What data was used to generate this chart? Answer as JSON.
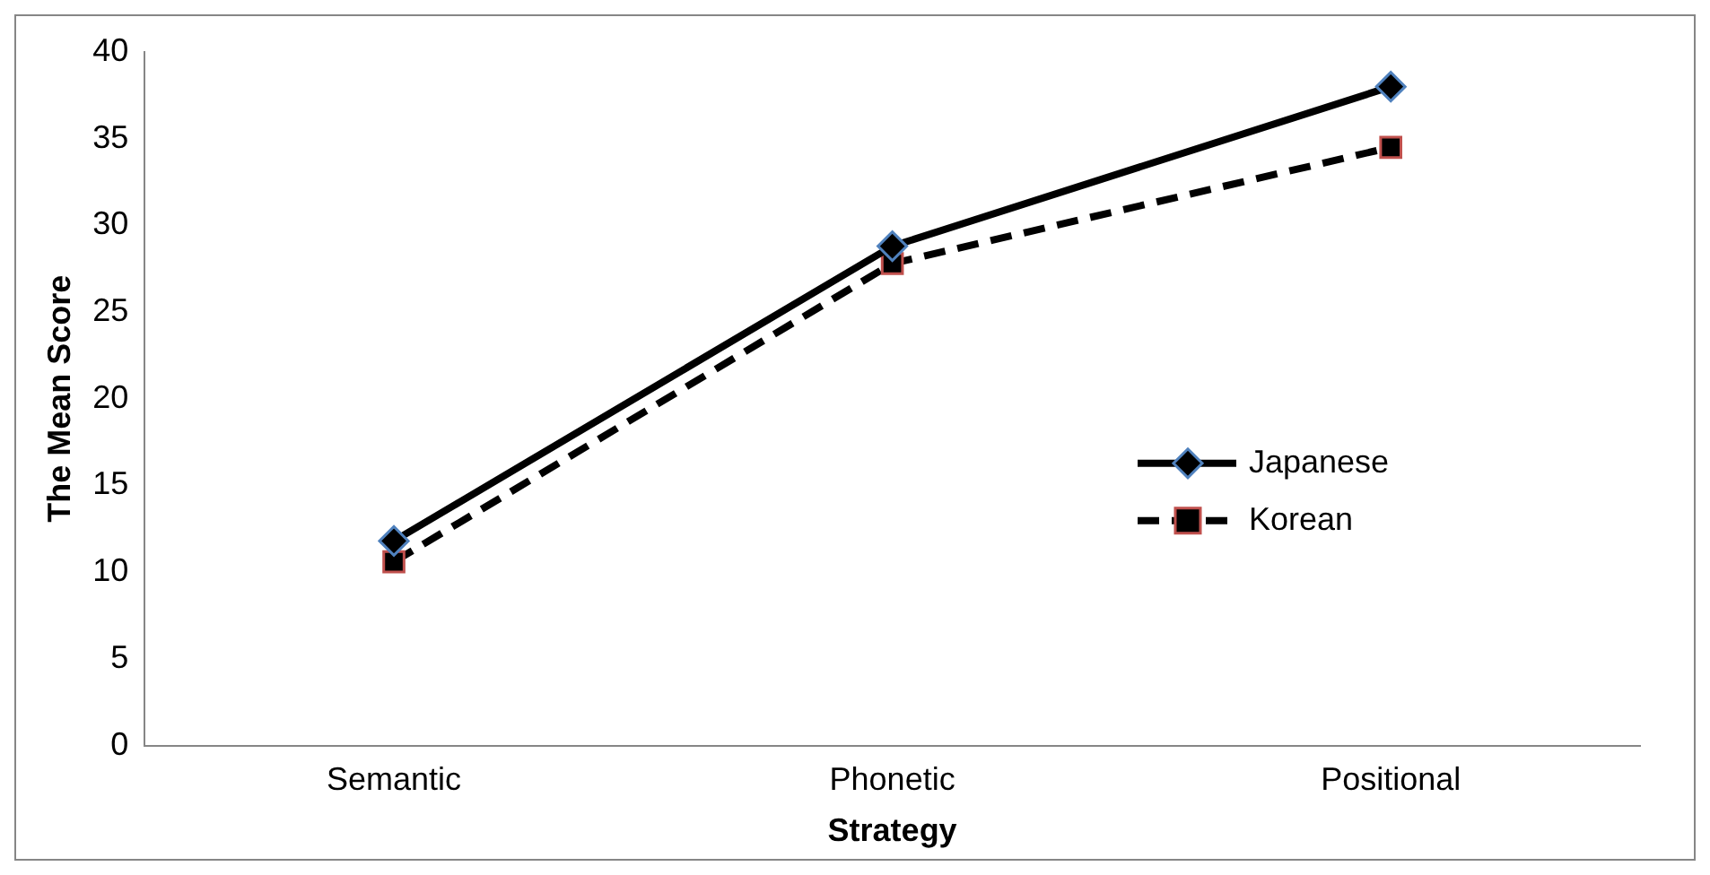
{
  "chart_data": {
    "type": "line",
    "xlabel": "Strategy",
    "ylabel": "The Mean Score",
    "categories": [
      "Semantic",
      "Phonetic",
      "Positional"
    ],
    "series": [
      {
        "name": "Japanese",
        "color": "#000000",
        "values": [
          11.8,
          28.8,
          38
        ],
        "marker": "diamond",
        "line_style": "solid"
      },
      {
        "name": "Korean",
        "color": "#000000",
        "values": [
          10.6,
          27.8,
          34.5
        ],
        "marker": "square",
        "line_style": "dashed"
      }
    ],
    "ylim": [
      0,
      40
    ],
    "yticks": [
      0,
      5,
      10,
      15,
      20,
      25,
      30,
      35,
      40
    ],
    "grid": false,
    "legend": "center right"
  }
}
